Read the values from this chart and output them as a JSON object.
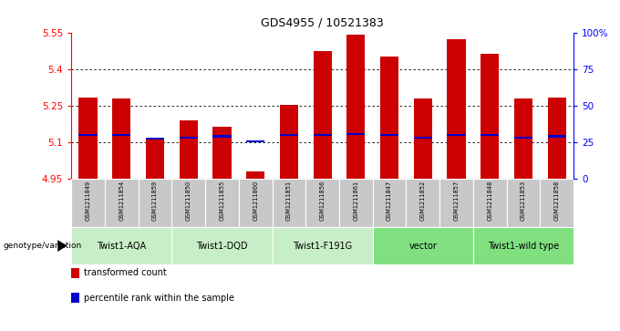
{
  "title": "GDS4955 / 10521383",
  "samples": [
    "GSM1211849",
    "GSM1211854",
    "GSM1211859",
    "GSM1211850",
    "GSM1211855",
    "GSM1211860",
    "GSM1211851",
    "GSM1211856",
    "GSM1211861",
    "GSM1211847",
    "GSM1211852",
    "GSM1211857",
    "GSM1211848",
    "GSM1211853",
    "GSM1211858"
  ],
  "bar_values": [
    5.285,
    5.28,
    5.11,
    5.19,
    5.165,
    4.98,
    5.255,
    5.475,
    5.545,
    5.455,
    5.28,
    5.525,
    5.465,
    5.28,
    5.285
  ],
  "percentile_values": [
    5.13,
    5.13,
    5.115,
    5.12,
    5.125,
    5.105,
    5.13,
    5.13,
    5.135,
    5.13,
    5.12,
    5.13,
    5.13,
    5.12,
    5.125
  ],
  "groups": [
    {
      "label": "Twist1-AQA",
      "cols": [
        0,
        1,
        2
      ],
      "color": "#c8eec8"
    },
    {
      "label": "Twist1-DQD",
      "cols": [
        3,
        4,
        5
      ],
      "color": "#c8eec8"
    },
    {
      "label": "Twist1-F191G",
      "cols": [
        6,
        7,
        8
      ],
      "color": "#c8eec8"
    },
    {
      "label": "vector",
      "cols": [
        9,
        10,
        11
      ],
      "color": "#80e080"
    },
    {
      "label": "Twist1-wild type",
      "cols": [
        12,
        13,
        14
      ],
      "color": "#80e080"
    }
  ],
  "ylim_left": [
    4.95,
    5.55
  ],
  "ylim_right": [
    0,
    100
  ],
  "yticks_left": [
    4.95,
    5.1,
    5.25,
    5.4,
    5.55
  ],
  "ytick_labels_left": [
    "4.95",
    "5.1",
    "5.25",
    "5.4",
    "5.55"
  ],
  "yticks_right": [
    0,
    25,
    50,
    75,
    100
  ],
  "ytick_labels_right": [
    "0",
    "25",
    "50",
    "75",
    "100%"
  ],
  "bar_color": "#cc0000",
  "percentile_color": "#0000cc",
  "bar_width": 0.55,
  "background_sample": "#c8c8c8",
  "genotype_label": "genotype/variation",
  "legend_items": [
    {
      "color": "#cc0000",
      "label": "transformed count"
    },
    {
      "color": "#0000cc",
      "label": "percentile rank within the sample"
    }
  ]
}
